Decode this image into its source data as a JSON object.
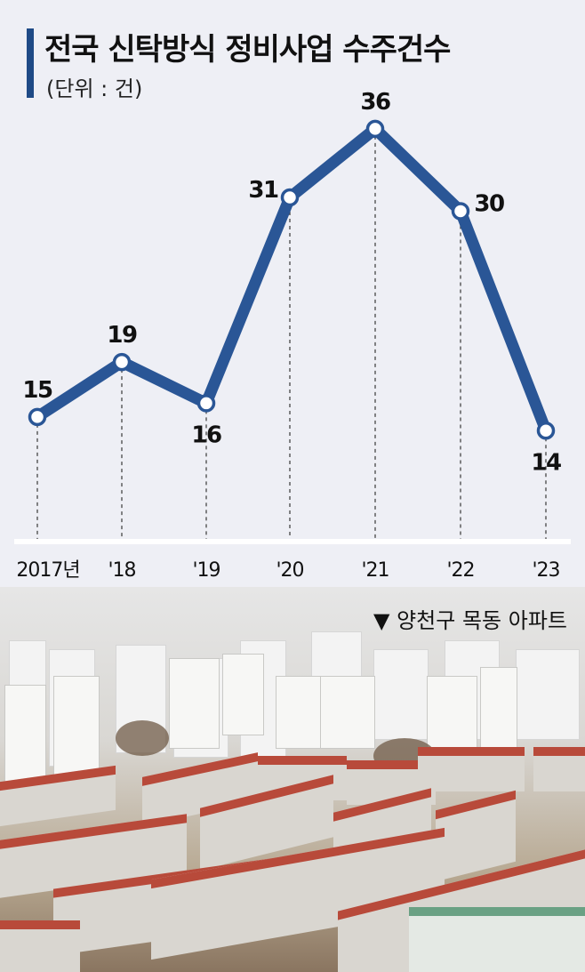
{
  "title": "전국 신탁방식 정비사업 수주건수",
  "unit": "(단위 : 건)",
  "chart_data": {
    "type": "line",
    "title": "전국 신탁방식 정비사업 수주건수",
    "unit": "(단위 : 건)",
    "categories": [
      "2017년",
      "'18",
      "'19",
      "'20",
      "'21",
      "'22",
      "'23"
    ],
    "values": [
      15,
      19,
      16,
      31,
      36,
      30,
      14
    ],
    "ylim": [
      0,
      40
    ],
    "line_color": "#2a5696"
  },
  "photo": {
    "caption": "▼ 양천구 목동 아파트"
  }
}
